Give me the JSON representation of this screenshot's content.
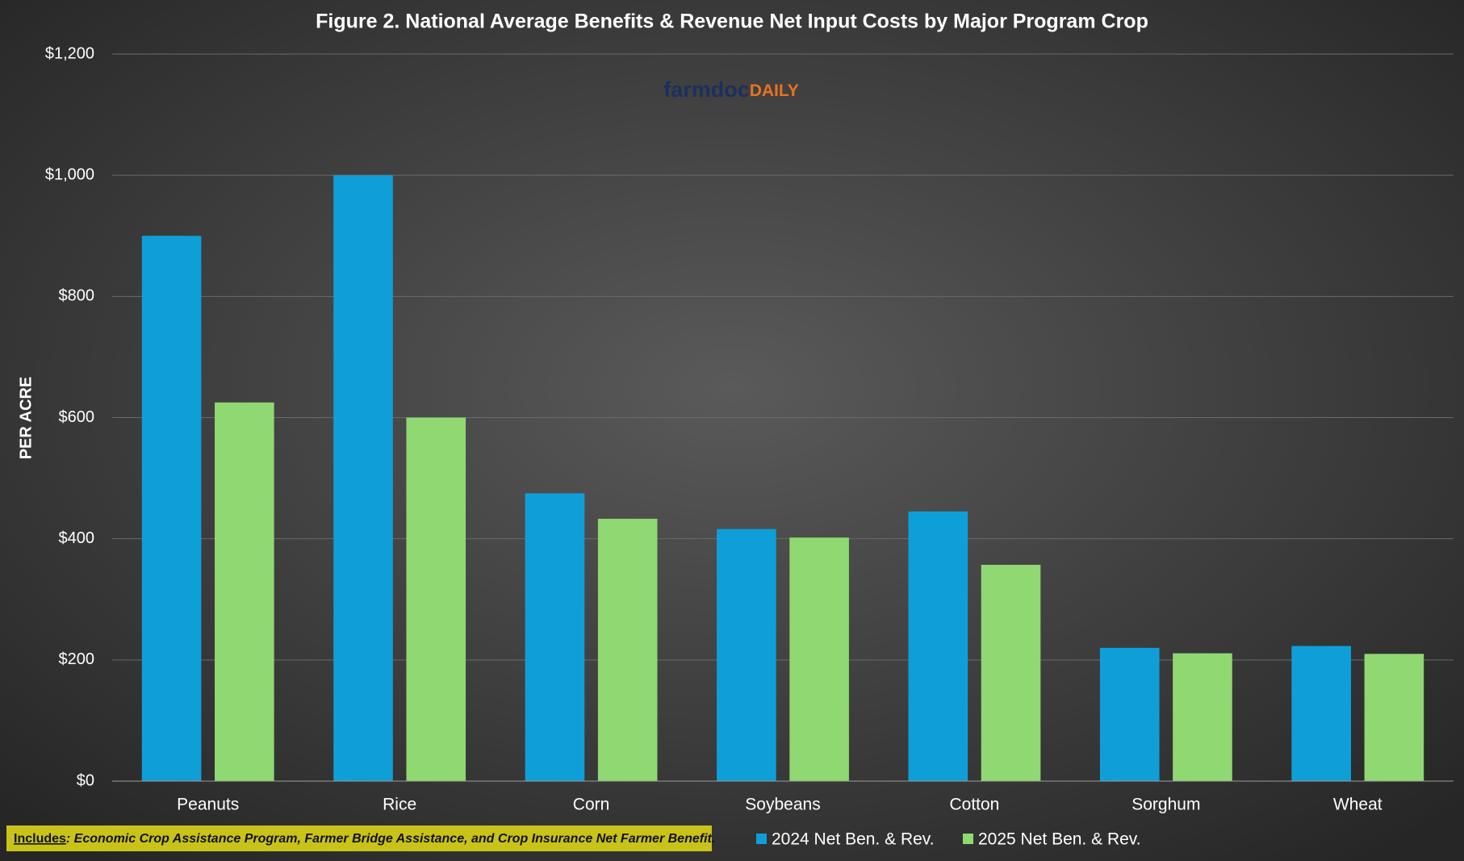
{
  "chart_data": {
    "type": "bar",
    "title": "Figure 2. National Average Benefits & Revenue Net Input Costs by Major Program Crop",
    "y_label": "PER ACRE",
    "categories": [
      "Peanuts",
      "Rice",
      "Corn",
      "Soybeans",
      "Cotton",
      "Sorghum",
      "Wheat"
    ],
    "series": [
      {
        "name": "2024 Net Ben. & Rev.",
        "color": "#0f9fd8",
        "values": [
          900,
          1000,
          475,
          416,
          445,
          220,
          223
        ]
      },
      {
        "name": "2025 Net Ben. & Rev.",
        "color": "#8fd872",
        "values": [
          625,
          600,
          433,
          402,
          357,
          211,
          210
        ]
      }
    ],
    "ylim": [
      0,
      1200
    ],
    "yticks": [
      {
        "value": 0,
        "label": "$0"
      },
      {
        "value": 200,
        "label": "$200"
      },
      {
        "value": 400,
        "label": "$400"
      },
      {
        "value": 600,
        "label": "$600"
      },
      {
        "value": 800,
        "label": "$800"
      },
      {
        "value": 1000,
        "label": "$1,000"
      },
      {
        "value": 1200,
        "label": "$1,200"
      }
    ],
    "grid": true,
    "legend": "bottom",
    "logo": {
      "farmdoc": "farmdoc",
      "daily": "DAILY"
    },
    "footnote": {
      "label": "Includes",
      "text": ": Economic Crop Assistance Program, Farmer Bridge Assistance, and Crop Insurance Net Farmer Benefit."
    }
  }
}
